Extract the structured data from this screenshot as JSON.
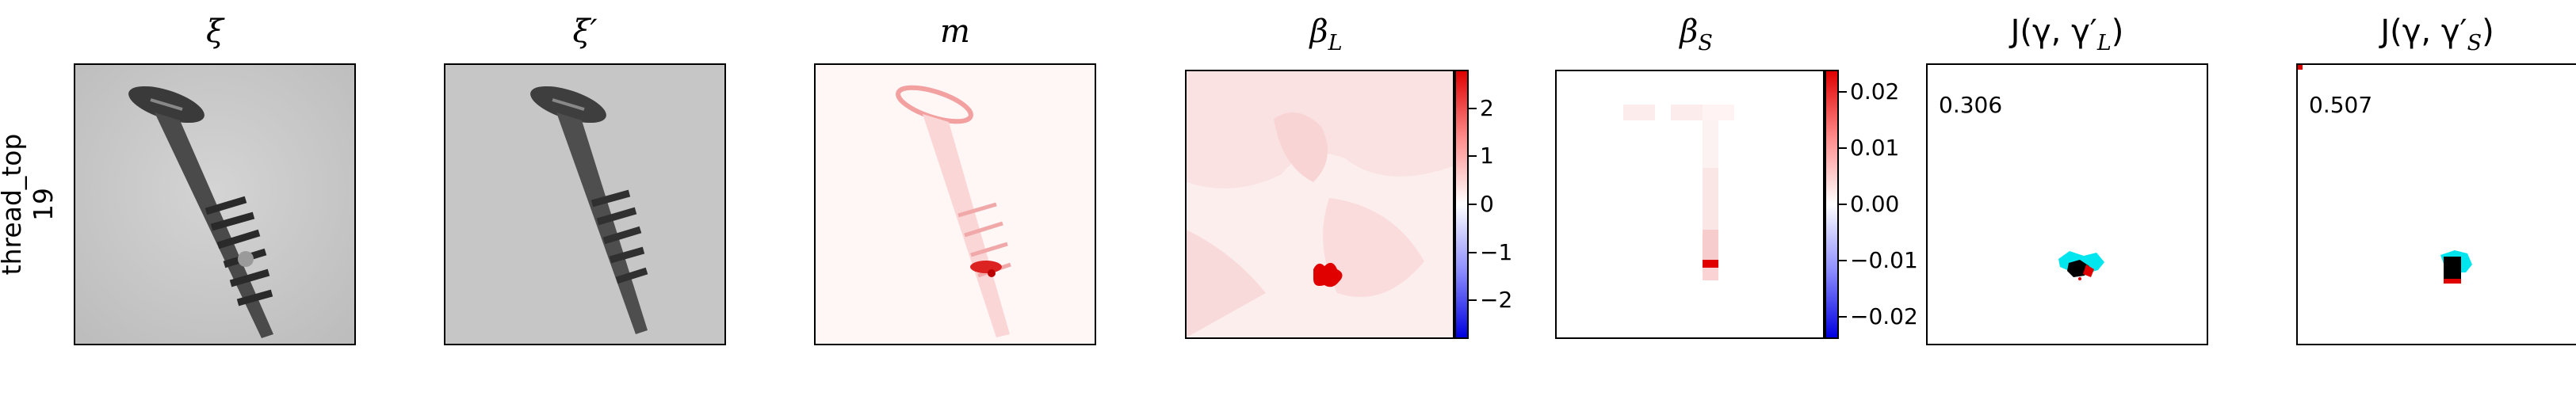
{
  "row": {
    "label_line1": "thread_top",
    "label_line2": "19"
  },
  "panels": [
    {
      "title": "ξ",
      "name": "xi"
    },
    {
      "title": "ξ′",
      "name": "xi-prime"
    },
    {
      "title": "m",
      "name": "m"
    },
    {
      "title": "β",
      "sub": "L",
      "name": "beta-l"
    },
    {
      "title": "β",
      "sub": "S",
      "name": "beta-s"
    },
    {
      "title_pre": "J(γ, γ′",
      "sub": "L",
      "title_post": ")",
      "name": "j-gamma-l",
      "value": "0.306"
    },
    {
      "title_pre": "J(γ, γ′",
      "sub": "S",
      "title_post": ")",
      "name": "j-gamma-s",
      "value": "0.507"
    }
  ],
  "colorbar_l": {
    "ticks": [
      "2",
      "1",
      "0",
      "−1",
      "−2"
    ],
    "values": [
      2,
      1,
      0,
      -1,
      -2
    ],
    "range": [
      -2.8,
      2.8
    ]
  },
  "colorbar_s": {
    "ticks": [
      "0.02",
      "0.01",
      "0.00",
      "−0.01",
      "−0.02"
    ],
    "values": [
      0.02,
      0.01,
      0.0,
      -0.01,
      -0.02
    ],
    "range": [
      -0.024,
      0.024
    ]
  },
  "colors": {
    "positive": "#e00000",
    "negative": "#0000e0",
    "overlay_a": "#00e5ee",
    "overlay_b": "#000000"
  }
}
